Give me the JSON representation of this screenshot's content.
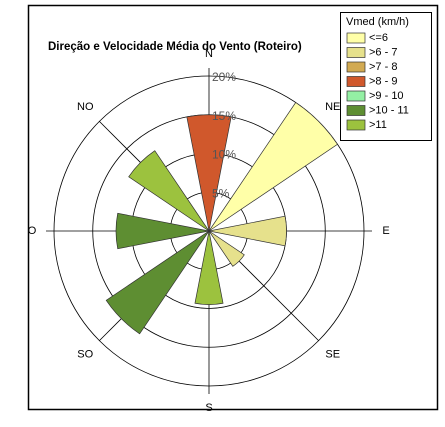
{
  "chart_data": {
    "type": "windrose",
    "title": "Direção e Velocidade Média do Vento (Roteiro)",
    "categories": [
      "N",
      "NE",
      "E",
      "SE",
      "S",
      "SO",
      "O",
      "NO"
    ],
    "values": [
      15,
      20,
      10,
      5.5,
      9.5,
      16,
      12,
      12.5
    ],
    "petal_class": [
      3,
      0,
      1,
      1,
      6,
      5,
      5,
      6
    ],
    "rlim": [
      0,
      20
    ],
    "rticks": [
      {
        "value": 5,
        "label": "5%"
      },
      {
        "value": 10,
        "label": "10%"
      },
      {
        "value": 15,
        "label": "15%"
      },
      {
        "value": 20,
        "label": "20%"
      }
    ],
    "legend_title": "Vmed (km/h)",
    "series": [
      {
        "name": "<=6",
        "color": "#ffffa8"
      },
      {
        "name": ">6 - 7",
        "color": "#e6e18c"
      },
      {
        "name": ">7 - 8",
        "color": "#d2aa52"
      },
      {
        "name": ">8 - 9",
        "color": "#d0582c"
      },
      {
        "name": ">9 - 10",
        "color": "#94f0a4"
      },
      {
        "name": ">10 - 11",
        "color": "#5e8e32"
      },
      {
        "name": ">11",
        "color": "#9cc23e"
      }
    ]
  }
}
